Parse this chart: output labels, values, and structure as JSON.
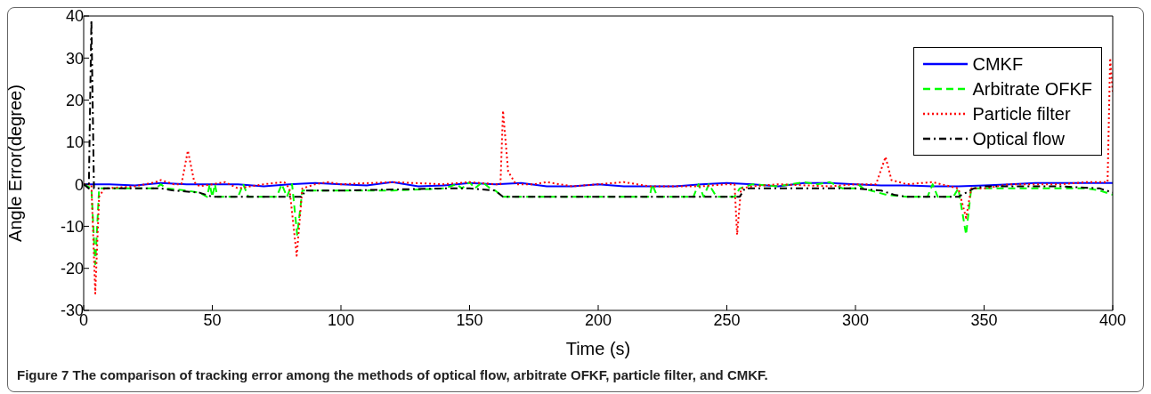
{
  "chart_data": {
    "type": "line",
    "xlabel": "Time (s)",
    "ylabel": "Angle Error(degree)",
    "xlim": [
      0,
      400
    ],
    "xticks": [
      0,
      50,
      100,
      150,
      200,
      250,
      300,
      350,
      400
    ],
    "ylim": [
      -30,
      40
    ],
    "yticks": [
      -30,
      -20,
      -10,
      0,
      10,
      20,
      30,
      40
    ],
    "grid": false,
    "legend": "top right",
    "marker": "none",
    "annotations": [
      "Figure 7 The comparison of tracking error among the methods of optical flow, arbitrate OFKF, particle filter, and CMKF."
    ],
    "series": [
      {
        "name": "CMKF",
        "color": "#0000ff",
        "line_style": "solid",
        "x": [
          0,
          10,
          20,
          30,
          40,
          50,
          60,
          70,
          80,
          90,
          100,
          110,
          120,
          130,
          140,
          150,
          160,
          170,
          180,
          190,
          200,
          210,
          220,
          230,
          240,
          250,
          260,
          270,
          280,
          290,
          300,
          310,
          320,
          330,
          340,
          350,
          360,
          370,
          380,
          390,
          400
        ],
        "values": [
          0,
          0,
          -0.3,
          0.3,
          0,
          0,
          0,
          -0.5,
          0,
          0.3,
          0,
          -0.3,
          0.5,
          -0.5,
          -0.3,
          0.3,
          0,
          0.3,
          -0.5,
          -0.5,
          0,
          -0.5,
          -0.5,
          -0.5,
          0,
          0.3,
          0,
          -0.5,
          0.3,
          0.3,
          0,
          -0.3,
          -0.3,
          -0.5,
          -0.5,
          -0.3,
          0,
          0.3,
          0.3,
          0.3,
          0.3
        ]
      },
      {
        "name": "Arbitrate OFKF",
        "color": "#00ff00",
        "line_style": "dashed",
        "x": [
          0,
          3,
          4.5,
          6,
          20,
          28,
          30,
          32,
          40,
          45,
          48,
          49,
          50,
          51,
          52,
          60,
          62,
          64,
          75,
          77,
          79,
          81,
          83,
          85,
          100,
          120,
          140,
          145,
          147,
          150,
          152,
          155,
          158,
          160,
          163,
          200,
          220,
          221,
          223,
          237,
          239,
          241,
          243,
          246,
          253,
          255,
          260,
          270,
          280,
          285,
          290,
          295,
          300,
          301,
          303,
          312,
          320,
          328,
          330,
          332,
          338,
          340,
          343,
          345,
          350,
          360,
          380,
          390,
          395,
          400
        ],
        "values": [
          0,
          -1,
          -19,
          -1,
          -1,
          -1,
          0,
          -1,
          -1.5,
          -2,
          -3,
          0,
          -3,
          0,
          -3,
          -3,
          0,
          -3,
          -3,
          0,
          -3,
          0,
          -12,
          -1.5,
          -1.5,
          -1.5,
          -1,
          0,
          -1,
          0.5,
          -1,
          0.5,
          -1,
          -1.5,
          -3,
          -3,
          -3,
          0,
          -3,
          -3,
          0,
          -3,
          0,
          -3,
          -3,
          -1,
          0,
          -0.5,
          0.5,
          0,
          0.5,
          -1,
          -1,
          0,
          -1,
          -2.5,
          -3,
          -3,
          0,
          -3,
          -3,
          -1,
          -12,
          -1,
          -1,
          -1,
          -1,
          -1,
          -1.5,
          -2.5
        ]
      },
      {
        "name": "Particle filter",
        "color": "#ff0000",
        "line_style": "dotted",
        "x": [
          0,
          3,
          4.5,
          6,
          8,
          20,
          28,
          30,
          35,
          38,
          40.5,
          43,
          45,
          50,
          55,
          60,
          70,
          78,
          80,
          82.8,
          85,
          90,
          95,
          100,
          120,
          140,
          150,
          160,
          162,
          163,
          165,
          168,
          175,
          180,
          190,
          200,
          210,
          220,
          240,
          250,
          253,
          254,
          255.5,
          260,
          270,
          290,
          300,
          308,
          311.7,
          314,
          320,
          330,
          340,
          343,
          345,
          350,
          360,
          380,
          390,
          398,
          399,
          400
        ],
        "values": [
          0,
          0,
          -26,
          -3,
          -1,
          -0.5,
          0.5,
          1,
          0,
          0,
          8,
          0.5,
          -0.5,
          0,
          0.5,
          -1,
          0,
          0.5,
          -1,
          -17,
          -1,
          0,
          0.5,
          0,
          0.5,
          0,
          0.5,
          0,
          0,
          17.5,
          3,
          0,
          0,
          0.5,
          -0.5,
          0,
          0.5,
          -0.5,
          -0.5,
          0,
          0,
          -12,
          -1,
          -0.5,
          0,
          -0.5,
          0,
          0,
          6.5,
          1,
          0,
          0.5,
          -1,
          -8,
          -1,
          -1,
          0,
          0,
          0.5,
          0.5,
          30,
          22
        ]
      },
      {
        "name": "Optical flow",
        "color": "#000000",
        "line_style": "dashdot",
        "x": [
          0,
          2,
          3,
          4,
          10,
          30,
          35,
          45,
          50,
          85,
          86,
          100,
          140,
          150,
          160,
          163,
          200,
          255,
          257,
          290,
          300,
          310,
          315,
          320,
          340,
          343,
          346,
          350,
          380,
          395,
          400
        ],
        "values": [
          0,
          -1,
          39,
          -1,
          -1,
          -1,
          -1.5,
          -2,
          -3,
          -3,
          -1.5,
          -1.5,
          -1,
          -1,
          -1.5,
          -3,
          -3,
          -3,
          -1,
          -1,
          -1,
          -1.5,
          -2.5,
          -3,
          -3,
          -2,
          -1,
          -0.5,
          -0.5,
          -1,
          -2
        ]
      }
    ]
  }
}
